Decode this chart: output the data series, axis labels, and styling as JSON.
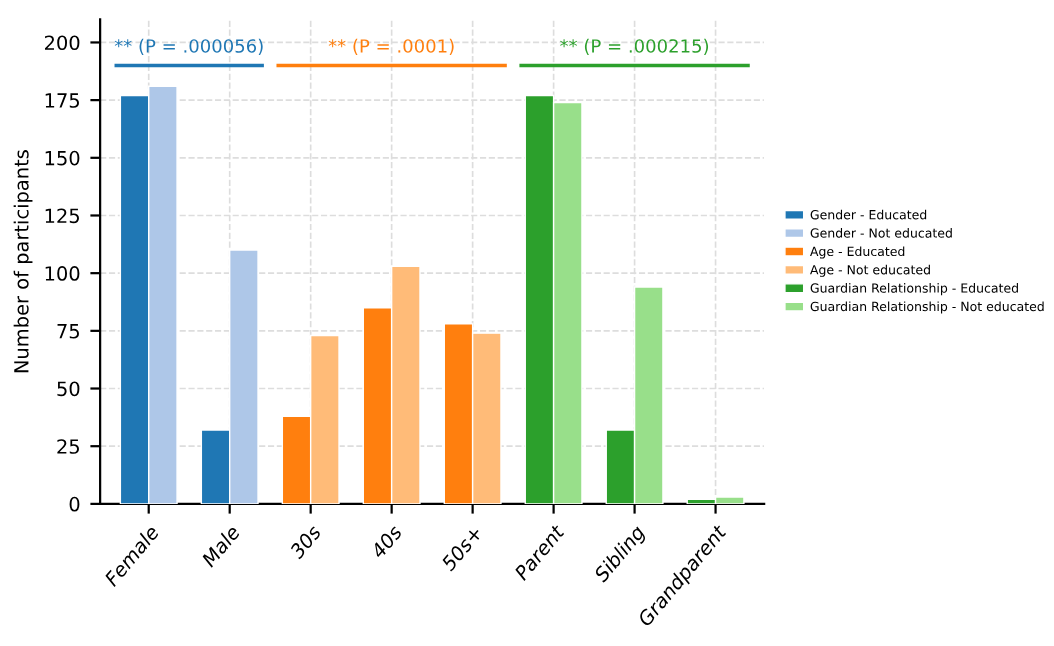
{
  "chart_data": {
    "type": "bar",
    "ylabel": "Number of participants",
    "categories": [
      "Female",
      "Male",
      "30s",
      "40s",
      "50s+",
      "Parent",
      "Sibling",
      "Grandparent"
    ],
    "series": [
      {
        "name": "Gender - Educated",
        "color": "#1f77b4",
        "values": [
          177,
          32,
          null,
          null,
          null,
          null,
          null,
          null
        ]
      },
      {
        "name": "Gender - Not educated",
        "color": "#aec7e8",
        "values": [
          181,
          110,
          null,
          null,
          null,
          null,
          null,
          null
        ]
      },
      {
        "name": "Age - Educated",
        "color": "#ff7f0e",
        "values": [
          null,
          null,
          38,
          85,
          78,
          null,
          null,
          null
        ]
      },
      {
        "name": "Age - Not educated",
        "color": "#ffbb78",
        "values": [
          null,
          null,
          73,
          103,
          74,
          null,
          null,
          null
        ]
      },
      {
        "name": "Guardian Relationship - Educated",
        "color": "#2ca02c",
        "values": [
          null,
          null,
          null,
          null,
          null,
          177,
          32,
          2
        ]
      },
      {
        "name": "Guardian Relationship - Not educated",
        "color": "#98df8a",
        "values": [
          null,
          null,
          null,
          null,
          null,
          174,
          94,
          3
        ]
      }
    ],
    "annotations": [
      "** (P = .000056)",
      "** (P = .0001)",
      "** (P = .000215)"
    ],
    "ylim": [
      0,
      210
    ],
    "yticks": [
      0,
      25,
      50,
      75,
      100,
      125,
      150,
      175,
      200
    ],
    "grid": true,
    "legend": "right"
  }
}
